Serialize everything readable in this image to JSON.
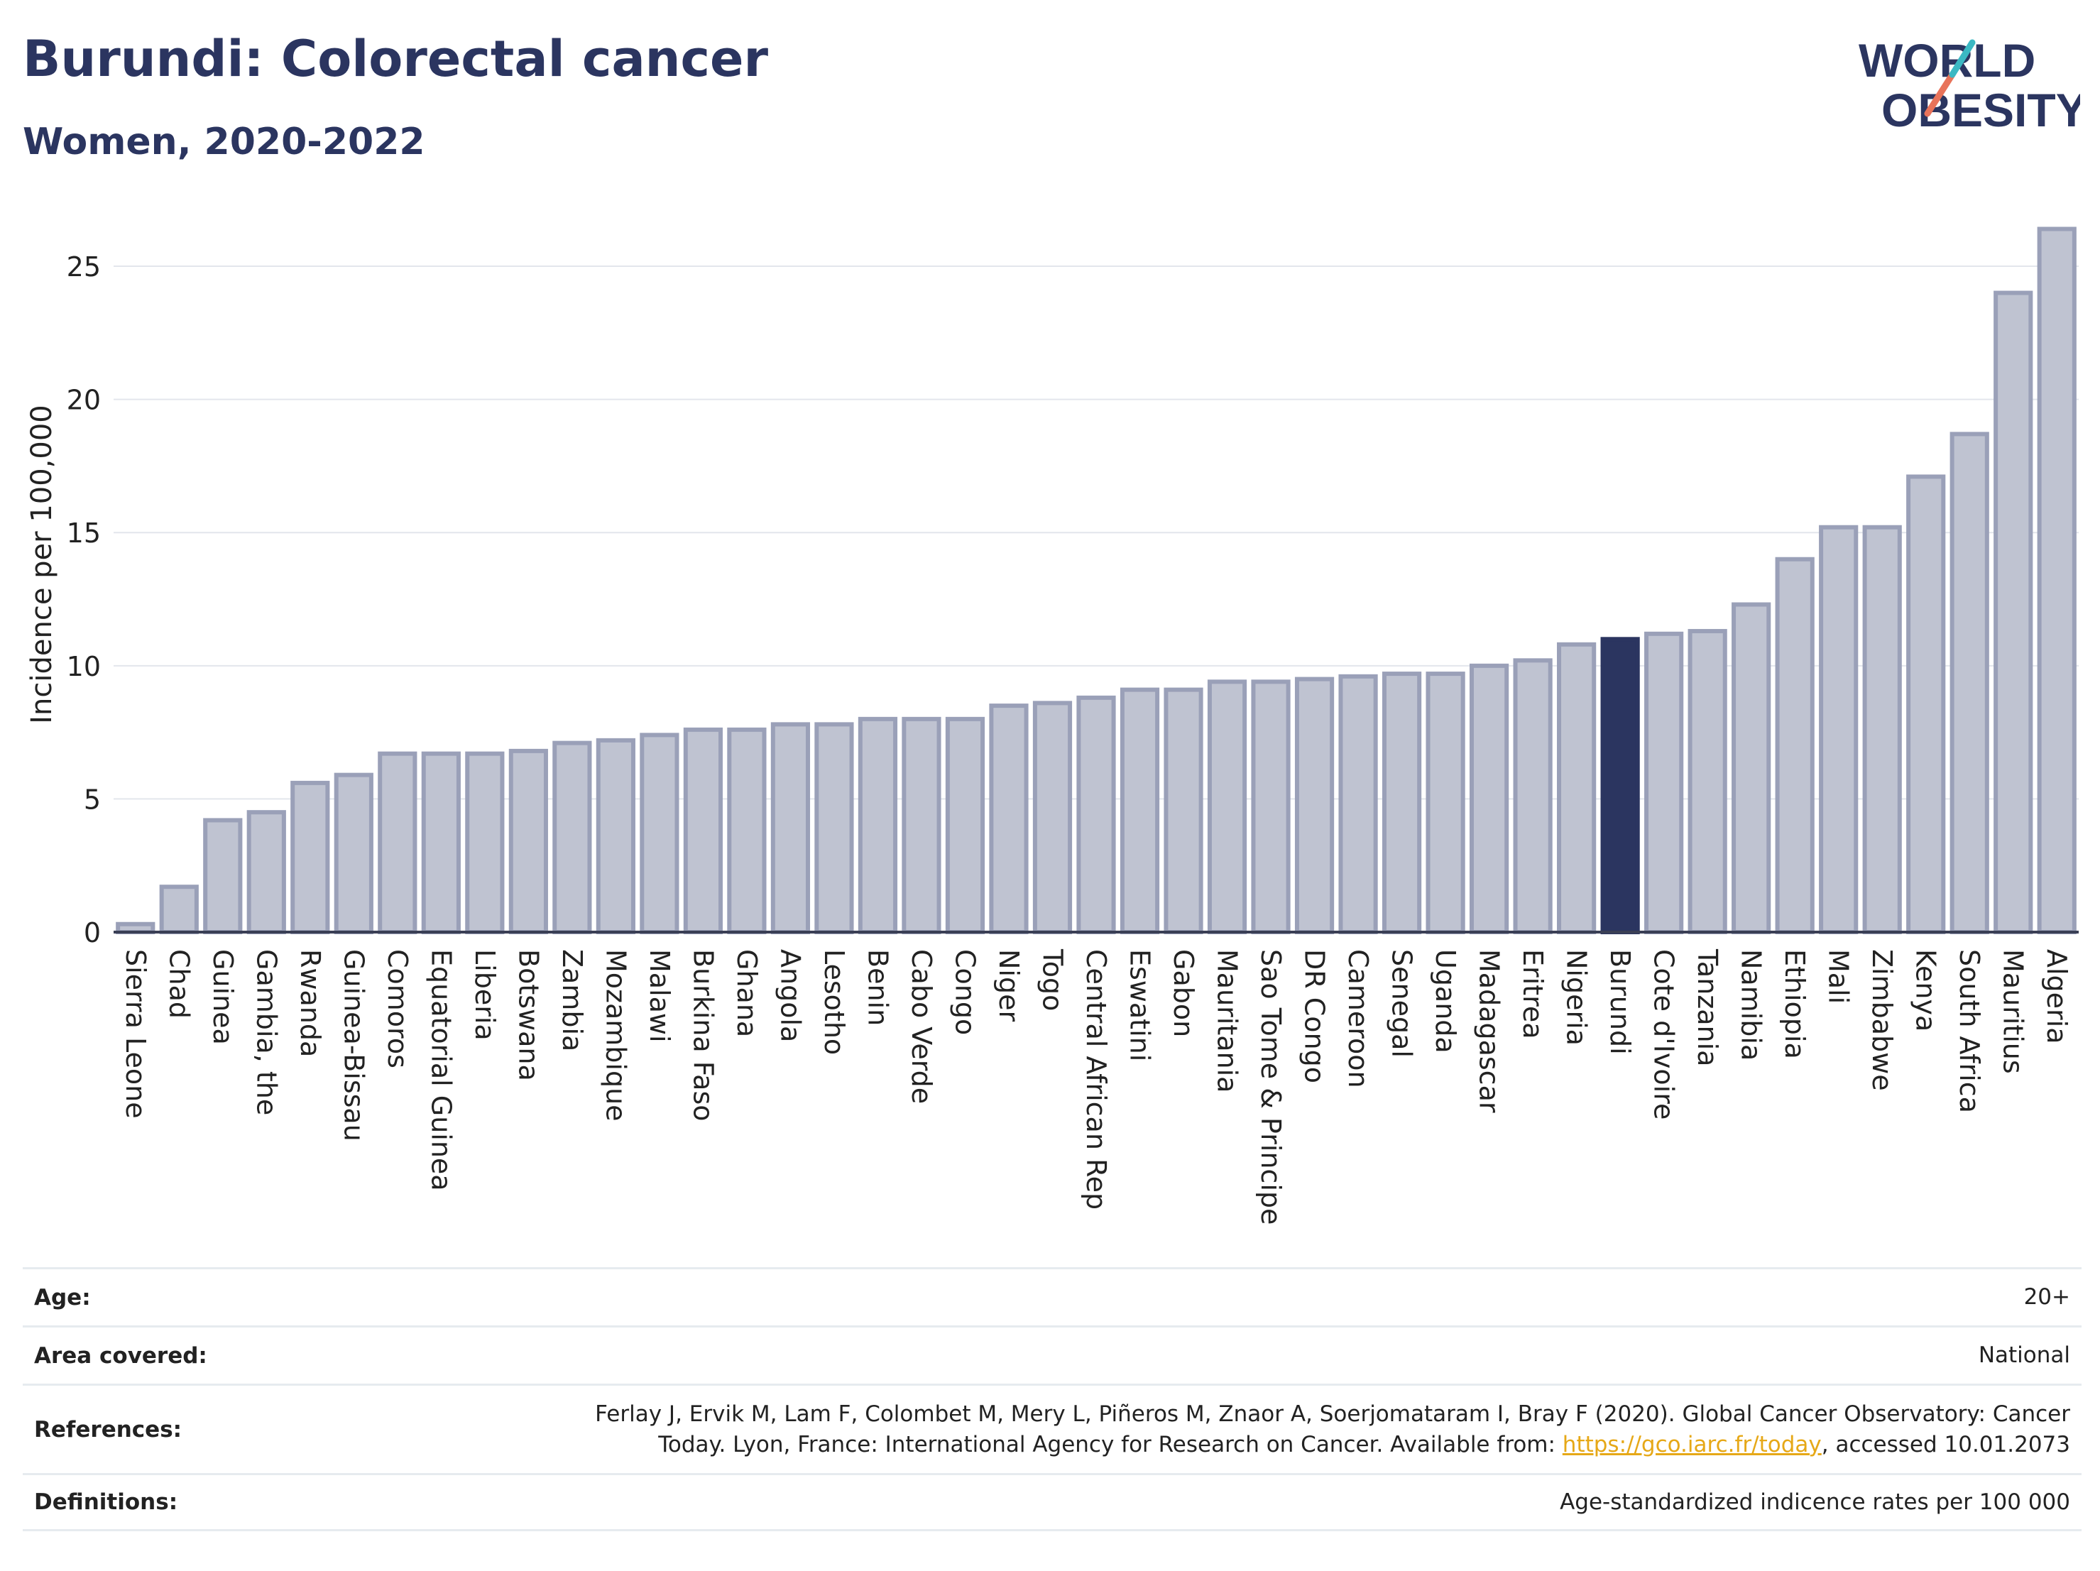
{
  "header": {
    "title": "Burundi: Colorectal cancer",
    "subtitle": "Women, 2020-2022"
  },
  "logo": {
    "line1": "WORLD",
    "line2": "OBESITY"
  },
  "colors": {
    "bar": "#bfc3d1",
    "bar_border": "#9aa0b8",
    "highlight": "#2b3560",
    "text": "#2b3560",
    "link": "#e6a817",
    "logo_teal": "#3bb8c3",
    "logo_coral": "#e8735a"
  },
  "chart_data": {
    "type": "bar",
    "ylabel": "Incidence per 100,000",
    "ylim": [
      0,
      27
    ],
    "yticks": [
      0,
      5,
      10,
      15,
      20,
      25
    ],
    "grid": true,
    "highlight": "Burundi",
    "categories": [
      "Sierra Leone",
      "Chad",
      "Guinea",
      "Gambia, the",
      "Rwanda",
      "Guinea-Bissau",
      "Comoros",
      "Equatorial Guinea",
      "Liberia",
      "Botswana",
      "Zambia",
      "Mozambique",
      "Malawi",
      "Burkina Faso",
      "Ghana",
      "Angola",
      "Lesotho",
      "Benin",
      "Cabo Verde",
      "Congo",
      "Niger",
      "Togo",
      "Central African Rep",
      "Eswatini",
      "Gabon",
      "Mauritania",
      "Sao Tome & Principe",
      "DR Congo",
      "Cameroon",
      "Senegal",
      "Uganda",
      "Madagascar",
      "Eritrea",
      "Nigeria",
      "Burundi",
      "Cote d'Ivoire",
      "Tanzania",
      "Namibia",
      "Ethiopia",
      "Mali",
      "Zimbabwe",
      "Kenya",
      "South Africa",
      "Mauritius",
      "Algeria"
    ],
    "values": [
      0.3,
      1.7,
      4.2,
      4.5,
      5.6,
      5.9,
      6.7,
      6.7,
      6.7,
      6.8,
      7.1,
      7.2,
      7.4,
      7.6,
      7.6,
      7.8,
      7.8,
      8.0,
      8.0,
      8.0,
      8.5,
      8.6,
      8.8,
      9.1,
      9.1,
      9.4,
      9.4,
      9.5,
      9.6,
      9.7,
      9.7,
      10.0,
      10.2,
      10.8,
      11.0,
      11.2,
      11.3,
      12.3,
      14.0,
      15.2,
      15.2,
      17.1,
      18.7,
      24.0,
      26.4
    ]
  },
  "meta": {
    "age_label": "Age:",
    "age_value": "20+",
    "area_label": "Area covered:",
    "area_value": "National",
    "references_label": "References:",
    "references_text_1": "Ferlay J, Ervik M, Lam F, Colombet M, Mery L, Piñeros M, Znaor A, Soerjomataram I, Bray F (2020). Global Cancer Observatory: Cancer",
    "references_text_2": "Today. Lyon, France: International Agency for Research on Cancer. Available from: ",
    "references_link": "https://gco.iarc.fr/today",
    "references_text_3": ", accessed 10.01.2073",
    "definitions_label": "Definitions:",
    "definitions_value": "Age-standardized indicence rates per 100 000"
  }
}
